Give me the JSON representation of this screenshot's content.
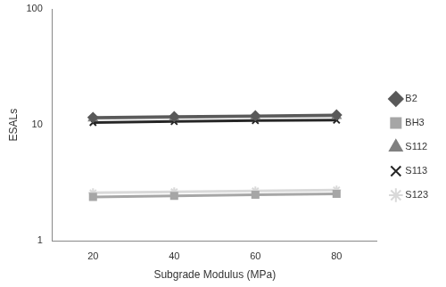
{
  "chart_data": {
    "type": "line",
    "x_label": "Subgrade Modulus (MPa)",
    "y_label": "ESALs",
    "categories": [
      "20",
      "40",
      "60",
      "80"
    ],
    "series": [
      {
        "name": "B2",
        "color": "#595959",
        "marker": "diamond",
        "line_style": "solid",
        "values": [
          11.6,
          11.8,
          12.0,
          12.2
        ]
      },
      {
        "name": "BH3",
        "color": "#a6a6a6",
        "marker": "square",
        "line_style": "solid",
        "values": [
          2.4,
          2.45,
          2.5,
          2.55
        ]
      },
      {
        "name": "S112",
        "color": "#808080",
        "marker": "triangle",
        "line_style": "solid",
        "values": [
          11.4,
          11.6,
          11.8,
          12.0
        ]
      },
      {
        "name": "S113",
        "color": "#262626",
        "marker": "x",
        "line_style": "solid",
        "values": [
          10.5,
          10.7,
          10.9,
          11.0
        ]
      },
      {
        "name": "S123",
        "color": "#d9d9d9",
        "marker": "star",
        "line_style": "solid",
        "values": [
          2.6,
          2.65,
          2.7,
          2.75
        ]
      }
    ],
    "log": "y",
    "ylim": [
      1,
      100
    ],
    "yticks": [
      1,
      10,
      100
    ],
    "grid": false,
    "legend": "right"
  }
}
